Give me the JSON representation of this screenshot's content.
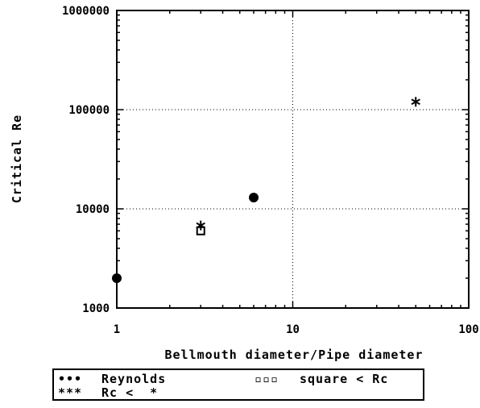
{
  "chart_data": {
    "type": "scatter",
    "title": "",
    "xlabel": "Bellmouth diameter/Pipe diameter",
    "ylabel": "Critical Re",
    "x_scale": "log",
    "y_scale": "log",
    "xlim": [
      1,
      100
    ],
    "ylim": [
      1000,
      1000000
    ],
    "x_ticks": [
      1,
      10,
      100
    ],
    "x_tick_labels": [
      "1",
      "10",
      "100"
    ],
    "y_ticks": [
      1000,
      10000,
      100000,
      1000000
    ],
    "y_tick_labels": [
      "1000",
      "10000",
      "100000",
      "1000000"
    ],
    "grid": "dotted at labeled decades",
    "series": [
      {
        "name": "Reynolds",
        "marker": "filled-circle",
        "points": [
          [
            1,
            2000
          ],
          [
            6,
            13000
          ]
        ]
      },
      {
        "name": "square < Rc",
        "marker": "open-square",
        "points": [
          [
            3,
            6000
          ]
        ]
      },
      {
        "name": "Rc < *",
        "marker": "asterisk",
        "points": [
          [
            3,
            6800
          ],
          [
            50,
            120000
          ]
        ]
      }
    ],
    "legend": {
      "placement": "below",
      "entries": [
        {
          "symbol": "•••",
          "label": "Reynolds"
        },
        {
          "symbol": "▫▫▫",
          "label": "square < Rc"
        },
        {
          "symbol": "***",
          "label": "Rc <  *"
        }
      ]
    }
  }
}
